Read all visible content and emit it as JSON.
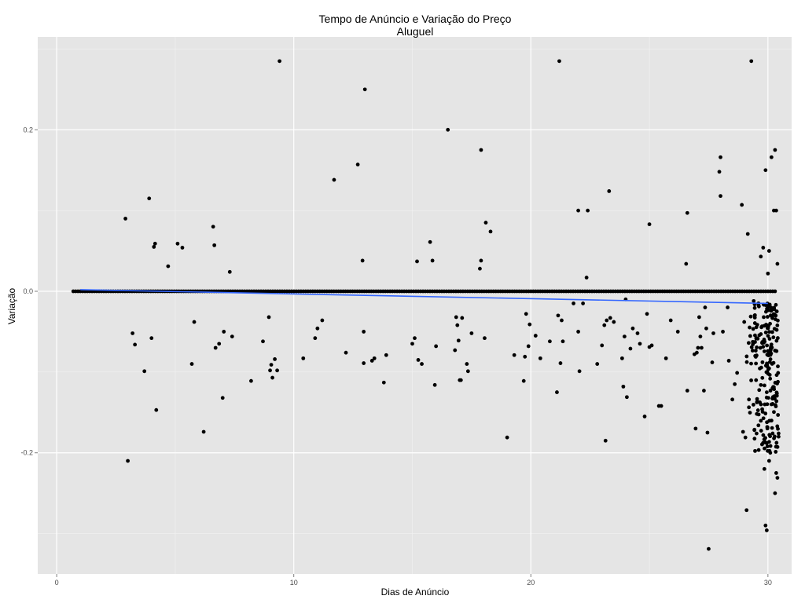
{
  "chart_data": {
    "type": "scatter",
    "title": "Tempo de Anúncio e Variação do Preço",
    "subtitle": "Aluguel",
    "xlabel": "Dias de Anúncio",
    "ylabel": "Variação",
    "xlim": [
      -0.8,
      31.0
    ],
    "ylim": [
      -0.35,
      0.315
    ],
    "x_ticks": [
      0,
      10,
      20,
      30
    ],
    "x_tick_labels": [
      "0",
      "10",
      "20",
      "30"
    ],
    "y_ticks": [
      -0.2,
      0.0,
      0.2
    ],
    "y_tick_labels": [
      "-0.2",
      "0.0",
      "0.2"
    ],
    "grid": true,
    "panel_color": "#e5e5e5",
    "point_color": "#000000",
    "trend_color": "#3366ff",
    "trend_line": {
      "x": [
        1.0,
        30.0
      ],
      "y": [
        0.002,
        -0.015
      ]
    },
    "baseline_row": {
      "y": 0.0,
      "x_start": 0.7,
      "x_end": 30.3,
      "count": 300
    },
    "points": [
      {
        "x": 2.9,
        "y": 0.09
      },
      {
        "x": 3.0,
        "y": -0.21
      },
      {
        "x": 3.2,
        "y": -0.052
      },
      {
        "x": 3.3,
        "y": -0.066
      },
      {
        "x": 3.7,
        "y": -0.099
      },
      {
        "x": 3.9,
        "y": 0.115
      },
      {
        "x": 4.0,
        "y": -0.058
      },
      {
        "x": 4.1,
        "y": 0.055
      },
      {
        "x": 4.15,
        "y": 0.059
      },
      {
        "x": 4.2,
        "y": -0.147
      },
      {
        "x": 4.7,
        "y": 0.031
      },
      {
        "x": 5.1,
        "y": 0.059
      },
      {
        "x": 5.3,
        "y": 0.054
      },
      {
        "x": 5.7,
        "y": -0.09
      },
      {
        "x": 5.8,
        "y": -0.038
      },
      {
        "x": 6.2,
        "y": -0.174
      },
      {
        "x": 6.6,
        "y": 0.08
      },
      {
        "x": 6.65,
        "y": 0.057
      },
      {
        "x": 6.7,
        "y": -0.07
      },
      {
        "x": 6.85,
        "y": -0.065
      },
      {
        "x": 7.0,
        "y": -0.132
      },
      {
        "x": 7.05,
        "y": -0.05
      },
      {
        "x": 7.3,
        "y": 0.024
      },
      {
        "x": 7.4,
        "y": -0.056
      },
      {
        "x": 8.2,
        "y": -0.111
      },
      {
        "x": 8.7,
        "y": -0.062
      },
      {
        "x": 8.95,
        "y": -0.032
      },
      {
        "x": 9.0,
        "y": -0.098
      },
      {
        "x": 9.05,
        "y": -0.091
      },
      {
        "x": 9.1,
        "y": -0.107
      },
      {
        "x": 9.2,
        "y": -0.084
      },
      {
        "x": 9.3,
        "y": -0.098
      },
      {
        "x": 9.4,
        "y": 0.285
      },
      {
        "x": 10.4,
        "y": -0.083
      },
      {
        "x": 10.9,
        "y": -0.058
      },
      {
        "x": 11.0,
        "y": -0.046
      },
      {
        "x": 11.2,
        "y": -0.036
      },
      {
        "x": 11.7,
        "y": 0.138
      },
      {
        "x": 12.2,
        "y": -0.076
      },
      {
        "x": 12.7,
        "y": 0.157
      },
      {
        "x": 12.9,
        "y": 0.038
      },
      {
        "x": 12.95,
        "y": -0.05
      },
      {
        "x": 13.0,
        "y": 0.25
      },
      {
        "x": 12.95,
        "y": -0.089
      },
      {
        "x": 13.3,
        "y": -0.086
      },
      {
        "x": 13.4,
        "y": -0.083
      },
      {
        "x": 13.8,
        "y": -0.113
      },
      {
        "x": 13.9,
        "y": -0.079
      },
      {
        "x": 15.0,
        "y": -0.065
      },
      {
        "x": 15.1,
        "y": -0.058
      },
      {
        "x": 15.2,
        "y": 0.037
      },
      {
        "x": 15.25,
        "y": -0.085
      },
      {
        "x": 15.4,
        "y": -0.09
      },
      {
        "x": 15.75,
        "y": 0.061
      },
      {
        "x": 15.85,
        "y": 0.038
      },
      {
        "x": 15.95,
        "y": -0.116
      },
      {
        "x": 16.0,
        "y": -0.068
      },
      {
        "x": 16.5,
        "y": 0.2
      },
      {
        "x": 16.8,
        "y": -0.073
      },
      {
        "x": 16.9,
        "y": -0.042
      },
      {
        "x": 16.85,
        "y": -0.032
      },
      {
        "x": 16.95,
        "y": -0.061
      },
      {
        "x": 17.0,
        "y": -0.11
      },
      {
        "x": 17.05,
        "y": -0.11
      },
      {
        "x": 17.1,
        "y": -0.033
      },
      {
        "x": 17.3,
        "y": -0.09
      },
      {
        "x": 17.35,
        "y": -0.099
      },
      {
        "x": 17.5,
        "y": -0.052
      },
      {
        "x": 17.9,
        "y": 0.175
      },
      {
        "x": 17.85,
        "y": 0.028
      },
      {
        "x": 17.9,
        "y": 0.038
      },
      {
        "x": 18.1,
        "y": 0.085
      },
      {
        "x": 18.05,
        "y": -0.058
      },
      {
        "x": 18.3,
        "y": 0.074
      },
      {
        "x": 19.0,
        "y": -0.181
      },
      {
        "x": 19.3,
        "y": -0.079
      },
      {
        "x": 19.7,
        "y": -0.111
      },
      {
        "x": 19.75,
        "y": -0.081
      },
      {
        "x": 19.8,
        "y": -0.028
      },
      {
        "x": 19.9,
        "y": -0.068
      },
      {
        "x": 19.95,
        "y": -0.041
      },
      {
        "x": 20.2,
        "y": -0.055
      },
      {
        "x": 20.4,
        "y": -0.083
      },
      {
        "x": 20.8,
        "y": -0.062
      },
      {
        "x": 21.1,
        "y": -0.125
      },
      {
        "x": 21.15,
        "y": -0.03
      },
      {
        "x": 21.2,
        "y": 0.285
      },
      {
        "x": 21.25,
        "y": -0.089
      },
      {
        "x": 21.3,
        "y": -0.036
      },
      {
        "x": 21.35,
        "y": -0.062
      },
      {
        "x": 21.8,
        "y": -0.015
      },
      {
        "x": 22.0,
        "y": 0.1
      },
      {
        "x": 22.0,
        "y": -0.05
      },
      {
        "x": 22.05,
        "y": -0.099
      },
      {
        "x": 22.2,
        "y": -0.015
      },
      {
        "x": 22.35,
        "y": 0.017
      },
      {
        "x": 22.4,
        "y": 0.1
      },
      {
        "x": 22.8,
        "y": -0.09
      },
      {
        "x": 23.0,
        "y": -0.067
      },
      {
        "x": 23.1,
        "y": -0.042
      },
      {
        "x": 23.15,
        "y": -0.185
      },
      {
        "x": 23.2,
        "y": -0.036
      },
      {
        "x": 23.3,
        "y": 0.124
      },
      {
        "x": 23.35,
        "y": -0.033
      },
      {
        "x": 23.5,
        "y": -0.038
      },
      {
        "x": 23.85,
        "y": -0.083
      },
      {
        "x": 23.9,
        "y": -0.118
      },
      {
        "x": 23.95,
        "y": -0.056
      },
      {
        "x": 24.0,
        "y": -0.01
      },
      {
        "x": 24.05,
        "y": -0.131
      },
      {
        "x": 24.2,
        "y": -0.071
      },
      {
        "x": 24.3,
        "y": -0.046
      },
      {
        "x": 24.5,
        "y": -0.052
      },
      {
        "x": 24.6,
        "y": -0.065
      },
      {
        "x": 24.8,
        "y": -0.155
      },
      {
        "x": 24.9,
        "y": -0.028
      },
      {
        "x": 25.0,
        "y": -0.069
      },
      {
        "x": 25.0,
        "y": 0.083
      },
      {
        "x": 25.1,
        "y": -0.067
      },
      {
        "x": 25.4,
        "y": -0.142
      },
      {
        "x": 25.5,
        "y": -0.142
      },
      {
        "x": 25.7,
        "y": -0.083
      },
      {
        "x": 25.9,
        "y": -0.036
      },
      {
        "x": 26.2,
        "y": -0.05
      },
      {
        "x": 26.55,
        "y": 0.034
      },
      {
        "x": 26.6,
        "y": 0.097
      },
      {
        "x": 26.6,
        "y": -0.123
      },
      {
        "x": 26.9,
        "y": -0.078
      },
      {
        "x": 26.95,
        "y": -0.17
      },
      {
        "x": 27.0,
        "y": -0.076
      },
      {
        "x": 27.05,
        "y": -0.07
      },
      {
        "x": 27.1,
        "y": -0.032
      },
      {
        "x": 27.15,
        "y": -0.056
      },
      {
        "x": 27.2,
        "y": -0.07
      },
      {
        "x": 27.3,
        "y": -0.123
      },
      {
        "x": 27.35,
        "y": -0.02
      },
      {
        "x": 27.4,
        "y": -0.046
      },
      {
        "x": 27.45,
        "y": -0.175
      },
      {
        "x": 27.5,
        "y": -0.319
      },
      {
        "x": 27.65,
        "y": -0.088
      },
      {
        "x": 27.7,
        "y": -0.052
      },
      {
        "x": 27.95,
        "y": 0.148
      },
      {
        "x": 28.0,
        "y": 0.166
      },
      {
        "x": 28.0,
        "y": 0.118
      },
      {
        "x": 28.1,
        "y": -0.05
      },
      {
        "x": 28.3,
        "y": -0.02
      },
      {
        "x": 28.35,
        "y": -0.086
      },
      {
        "x": 28.5,
        "y": -0.134
      },
      {
        "x": 28.6,
        "y": -0.115
      },
      {
        "x": 28.7,
        "y": -0.101
      },
      {
        "x": 28.9,
        "y": 0.107
      },
      {
        "x": 28.95,
        "y": -0.174
      },
      {
        "x": 29.0,
        "y": -0.038
      },
      {
        "x": 29.05,
        "y": -0.181
      },
      {
        "x": 29.1,
        "y": -0.271
      },
      {
        "x": 29.15,
        "y": 0.071
      },
      {
        "x": 29.2,
        "y": -0.134
      },
      {
        "x": 29.3,
        "y": 0.285
      },
      {
        "x": 29.4,
        "y": -0.012
      },
      {
        "x": 29.5,
        "y": -0.11
      },
      {
        "x": 29.6,
        "y": -0.166
      },
      {
        "x": 29.7,
        "y": 0.043
      },
      {
        "x": 29.8,
        "y": 0.054
      },
      {
        "x": 29.9,
        "y": 0.15
      },
      {
        "x": 29.9,
        "y": -0.29
      },
      {
        "x": 29.95,
        "y": -0.296
      },
      {
        "x": 30.0,
        "y": 0.022
      },
      {
        "x": 30.05,
        "y": 0.05
      },
      {
        "x": 30.1,
        "y": -0.2
      },
      {
        "x": 30.15,
        "y": 0.166
      },
      {
        "x": 30.2,
        "y": -0.176
      },
      {
        "x": 30.25,
        "y": 0.1
      },
      {
        "x": 30.3,
        "y": 0.175
      },
      {
        "x": 30.3,
        "y": -0.25
      },
      {
        "x": 30.35,
        "y": 0.1
      },
      {
        "x": 30.35,
        "y": -0.225
      },
      {
        "x": 30.4,
        "y": 0.034
      },
      {
        "x": 30.4,
        "y": -0.231
      },
      {
        "x": 30.45,
        "y": -0.176
      },
      {
        "x": 30.45,
        "y": -0.18
      },
      {
        "x": 29.85,
        "y": -0.22
      },
      {
        "x": 29.95,
        "y": -0.188
      },
      {
        "x": 30.05,
        "y": -0.21
      },
      {
        "x": 30.15,
        "y": -0.14
      }
    ],
    "dense_cluster": {
      "x_min": 29.1,
      "x_max": 30.45,
      "y_min": -0.2,
      "y_max": -0.015,
      "count": 220
    }
  }
}
